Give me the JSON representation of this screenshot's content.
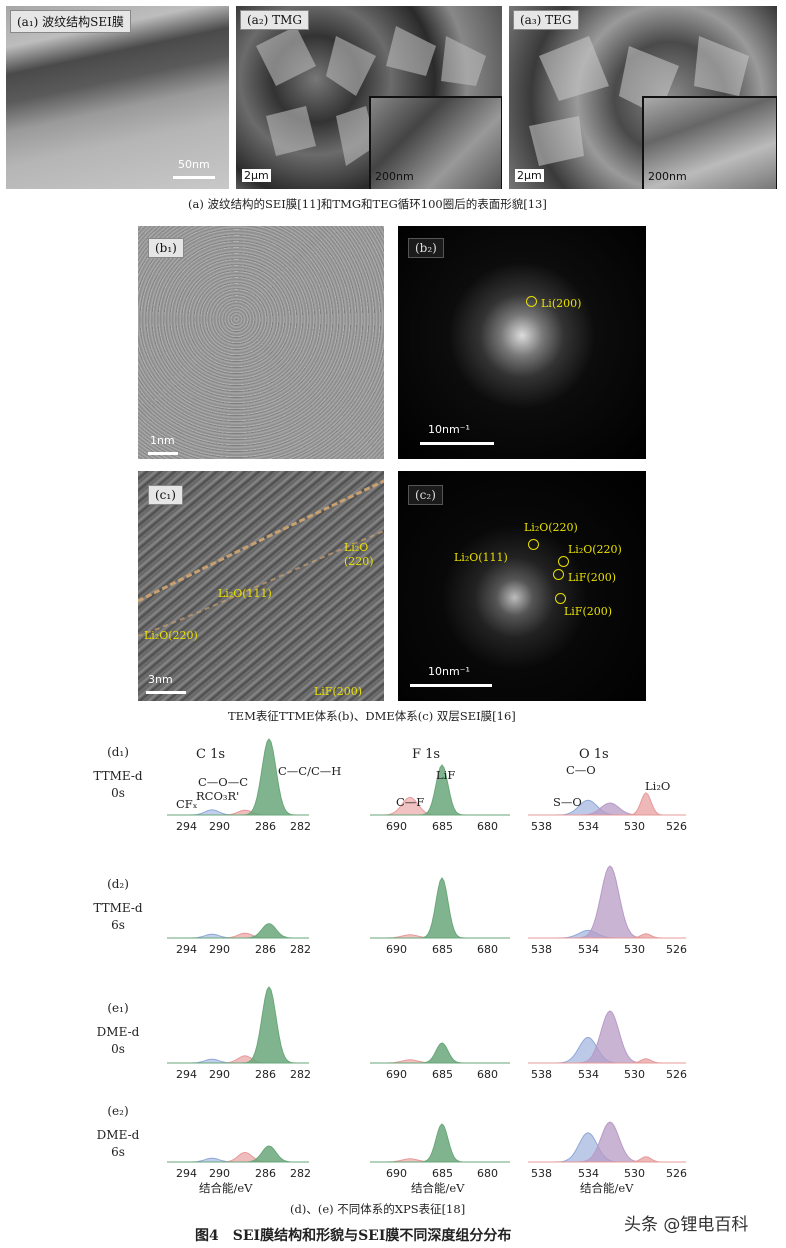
{
  "panels_a": [
    {
      "label": "(a₁) 波纹结构SEI膜",
      "scale": "50nm"
    },
    {
      "label": "(a₂) TMG",
      "scale": "2μm",
      "inset_scale": "200nm"
    },
    {
      "label": "(a₃) TEG",
      "scale": "2μm",
      "inset_scale": "200nm"
    }
  ],
  "caption_a": "(a) 波纹结构的SEI膜[11]和TMG和TEG循环100圈后的表面形貌[13]",
  "panels_bc": [
    {
      "label": "(b₁)",
      "scale": "1nm"
    },
    {
      "label": "(b₂)",
      "scale": "10nm⁻¹",
      "annotations": [
        "Li(200)"
      ]
    },
    {
      "label": "(c₁)",
      "scale": "3nm",
      "annotations": [
        "Li₂O(111)",
        "Li₂O(220)",
        "Li₂O\n(220)",
        "LiF(200)"
      ]
    },
    {
      "label": "(c₂)",
      "scale": "10nm⁻¹",
      "annotations": [
        "Li₂O(220)",
        "Li₂O(111)",
        "Li₂O(220)",
        "LiF(200)",
        "LiF(200)"
      ]
    }
  ],
  "caption_bc": "TEM表征TTME体系(b)、DME体系(c) 双层SEI膜[16]",
  "xps": {
    "columns": [
      "C 1s",
      "F 1s",
      "O 1s"
    ],
    "rows": [
      {
        "id": "(d₁)",
        "system": "TTME-d",
        "time": "0s"
      },
      {
        "id": "(d₂)",
        "system": "TTME-d",
        "time": "6s"
      },
      {
        "id": "(e₁)",
        "system": "DME-d",
        "time": "0s"
      },
      {
        "id": "(e₂)",
        "system": "DME-d",
        "time": "6s"
      }
    ],
    "ticks": {
      "C": [
        "294",
        "290",
        "286",
        "282"
      ],
      "F": [
        "690",
        "685",
        "680"
      ],
      "O": [
        "538",
        "534",
        "530",
        "526"
      ]
    },
    "peak_labels": {
      "C": [
        "C—O—C",
        "RCO₃R'",
        "CFₓ",
        "C—C/C—H"
      ],
      "F": [
        "LiF",
        "C—F"
      ],
      "O": [
        "C—O",
        "S—O",
        "Li₂O"
      ]
    },
    "xlabel": "结合能/eV",
    "colors": {
      "green": "#6aa77a",
      "red": "#e79a9a",
      "blue": "#8fa7d8",
      "purple": "#b79bc6"
    }
  },
  "caption_de": "(d)、(e) 不同体系的XPS表征[18]",
  "figure_title": "图4　SEI膜结构和形貌与SEI膜不同深度组分分布",
  "watermark": "头条 @锂电百科"
}
